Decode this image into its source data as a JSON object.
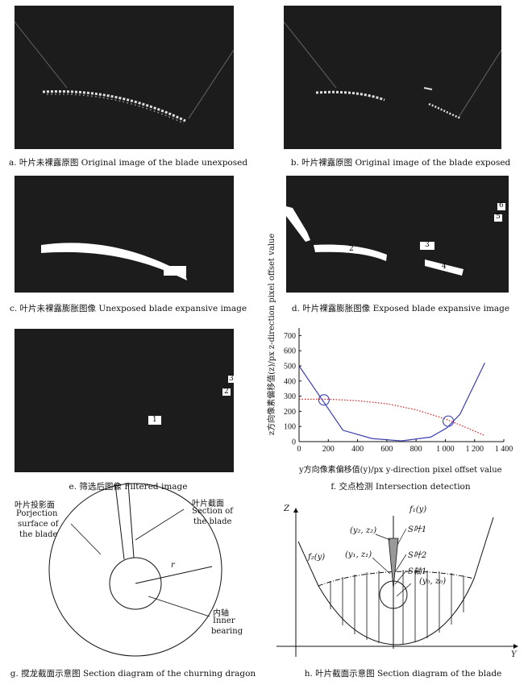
{
  "captions": {
    "a": "a. 叶片未裸露原图 Original image of the blade unexposed",
    "b": "b. 叶片裸露原图 Original image of the blade exposed",
    "c": "c. 叶片未裸露膨胀图像 Unexposed blade expansive image",
    "d": "d. 叶片裸露膨胀图像 Exposed blade expansive image",
    "e": "e. 筛选后图像 Filtered image",
    "f": "f. 交点检测 Intersection detection",
    "g": "g. 搅龙截面示意图 Section diagram of the churning dragon",
    "h": "h. 叶片截面示意图 Section diagram of the blade"
  },
  "panel_d": {
    "labels": [
      "2",
      "3",
      "4",
      "6",
      "5"
    ]
  },
  "panel_e": {
    "labels": [
      "1",
      "2",
      "3"
    ]
  },
  "chart_data": {
    "type": "line",
    "xlabel": "y方向像素偏移值(y)/px  y-direction pixel offset value",
    "ylabel": "z方向像素偏移值(z)/px  z-direction pixel offset value",
    "xticks": [
      "0",
      "200",
      "400",
      "600",
      "800",
      "1 000",
      "1 200",
      "1 400"
    ],
    "yticks": [
      "0",
      "100",
      "200",
      "300",
      "400",
      "500",
      "600",
      "700"
    ],
    "xlim": [
      0,
      1400
    ],
    "ylim": [
      0,
      750
    ],
    "series": [
      {
        "style": "solid",
        "color": "#3a3fb0",
        "x": [
          0,
          300,
          500,
          700,
          900,
          1010,
          1100,
          1270
        ],
        "y": [
          500,
          75,
          20,
          5,
          30,
          90,
          180,
          520
        ]
      },
      {
        "style": "dotted",
        "color": "#e01b1b",
        "x": [
          0,
          200,
          400,
          600,
          800,
          1000,
          1150,
          1270
        ],
        "y": [
          280,
          280,
          270,
          250,
          210,
          150,
          90,
          40
        ]
      }
    ],
    "circles": [
      {
        "x": 170,
        "y": 275
      },
      {
        "x": 1020,
        "y": 135
      }
    ]
  },
  "diagram_g": {
    "labels": {
      "proj": "叶片投影面",
      "proj_en1": "Porjection",
      "proj_en2": "surface of",
      "proj_en3": "the blade",
      "sec": "叶片截面",
      "sec_en1": "Section of",
      "sec_en2": "the blade",
      "r": "r",
      "shaft": "内轴",
      "shaft_en1": "Inner",
      "shaft_en2": "bearing"
    }
  },
  "diagram_h": {
    "labels": {
      "Z": "Z",
      "Y": "Y",
      "f1": "f₁(y)",
      "f2": "f₂(y)",
      "p2": "(y₂, z₂)",
      "p1": "(y₁, z₁)",
      "p0": "(y₀, z₀)",
      "s1": "S叶1",
      "s2": "S叶2",
      "s3": "S轴1"
    }
  }
}
